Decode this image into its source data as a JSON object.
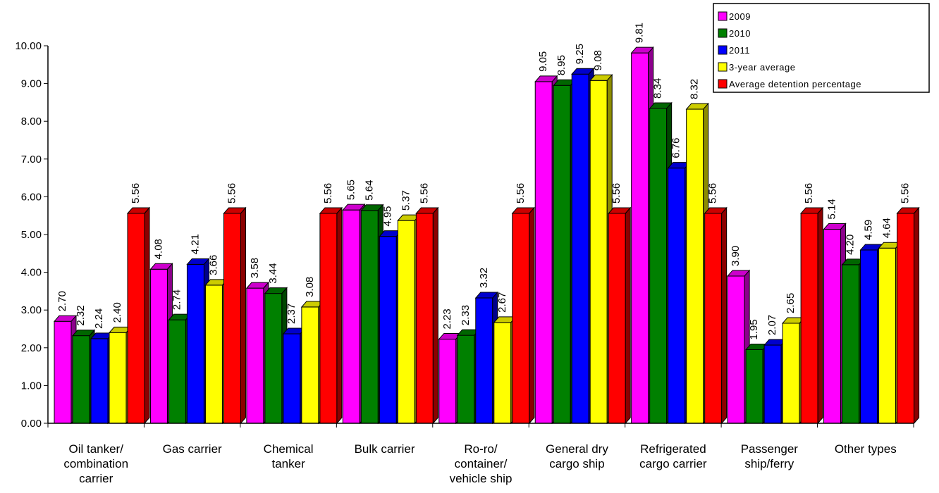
{
  "chart_data": {
    "type": "bar",
    "title": "",
    "xlabel": "",
    "ylabel": "",
    "ylim": [
      0,
      10
    ],
    "y_ticks": [
      "0.00",
      "1.00",
      "2.00",
      "3.00",
      "4.00",
      "5.00",
      "6.00",
      "7.00",
      "8.00",
      "9.00",
      "10.00"
    ],
    "grid": false,
    "legend_position": "top-right",
    "categories": [
      "Oil tanker/ combination carrier",
      "Gas carrier",
      "Chemical tanker",
      "Bulk carrier",
      "Ro-ro/ container/ vehicle ship",
      "General dry cargo ship",
      "Refrigerated cargo carrier",
      "Passenger ship/ferry",
      "Other types"
    ],
    "category_label_lines": [
      [
        "Oil tanker/",
        "combination",
        "carrier"
      ],
      [
        "Gas carrier"
      ],
      [
        "Chemical",
        "tanker"
      ],
      [
        "Bulk carrier"
      ],
      [
        "Ro-ro/",
        "container/",
        "vehicle ship"
      ],
      [
        "General dry",
        "cargo ship"
      ],
      [
        "Refrigerated",
        "cargo carrier"
      ],
      [
        "Passenger",
        "ship/ferry"
      ],
      [
        "Other types"
      ]
    ],
    "series": [
      {
        "name": "2009",
        "color": "#ff00ff",
        "values": [
          2.7,
          4.08,
          3.58,
          5.65,
          2.23,
          9.05,
          9.81,
          3.9,
          5.14
        ],
        "labels": [
          "2.70",
          "4.08",
          "3.58",
          "5.65",
          "2.23",
          "9.05",
          "9.81",
          "3.90",
          "5.14"
        ]
      },
      {
        "name": "2010",
        "color": "#008000",
        "values": [
          2.32,
          2.74,
          3.44,
          5.64,
          2.33,
          8.95,
          8.34,
          1.95,
          4.2
        ],
        "labels": [
          "2.32",
          "2.74",
          "3.44",
          "5.64",
          "2.33",
          "8.95",
          "8.34",
          "1.95",
          "4.20"
        ]
      },
      {
        "name": "2011",
        "color": "#0000ff",
        "values": [
          2.24,
          4.21,
          2.37,
          4.95,
          3.32,
          9.25,
          6.76,
          2.07,
          4.59
        ],
        "labels": [
          "2.24",
          "4.21",
          "2.37",
          "4.95",
          "3.32",
          "9.25",
          "6.76",
          "2.07",
          "4.59"
        ]
      },
      {
        "name": "3-year average",
        "color": "#ffff00",
        "values": [
          2.4,
          3.66,
          3.08,
          5.37,
          2.67,
          9.08,
          8.32,
          2.65,
          4.64
        ],
        "labels": [
          "2.40",
          "3.66",
          "3.08",
          "5.37",
          "2.67",
          "9.08",
          "8.32",
          "2.65",
          "4.64"
        ]
      },
      {
        "name": "Average detention percentage",
        "color": "#ff0000",
        "values": [
          5.56,
          5.56,
          5.56,
          5.56,
          5.56,
          5.56,
          5.56,
          5.56,
          5.56
        ],
        "labels": [
          "5.56",
          "5.56",
          "5.56",
          "5.56",
          "5.56",
          "5.56",
          "5.56",
          "5.56",
          "5.56"
        ]
      }
    ]
  }
}
